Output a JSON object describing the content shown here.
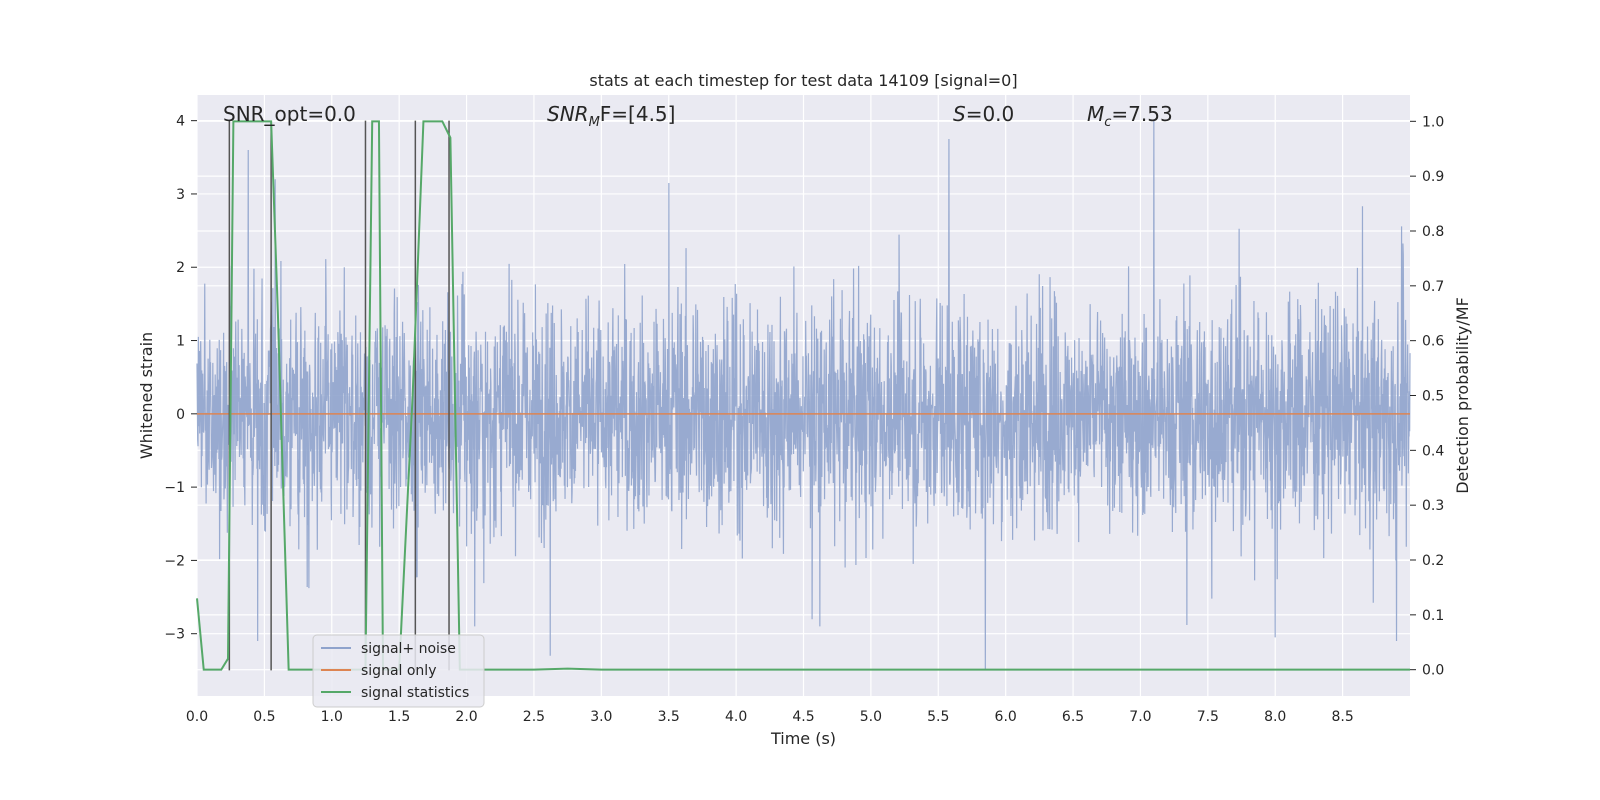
{
  "chart_data": {
    "type": "line",
    "title": "stats at each timestep for test data 14109 [signal=0]",
    "xlabel": "Time (s)",
    "ylabel": "Whitened strain",
    "y2label": "Detection probability/MF",
    "xlim": [
      0,
      9.0
    ],
    "ylim": [
      -3.85,
      4.35
    ],
    "y2lim": [
      -0.048,
      1.048
    ],
    "x_ticks": [
      "0.0",
      "0.5",
      "1.0",
      "1.5",
      "2.0",
      "2.5",
      "3.0",
      "3.5",
      "4.0",
      "4.5",
      "5.0",
      "5.5",
      "6.0",
      "6.5",
      "7.0",
      "7.5",
      "8.0",
      "8.5"
    ],
    "y_ticks": [
      "4",
      "3",
      "2",
      "1",
      "0",
      "−1",
      "−2",
      "−3"
    ],
    "y2_ticks": [
      "1.0",
      "0.9",
      "0.8",
      "0.7",
      "0.6",
      "0.5",
      "0.4",
      "0.3",
      "0.2",
      "0.1",
      "0.0"
    ],
    "grid": true,
    "legend_placement": "lower-left",
    "annotations": {
      "snr_opt": "SNR_opt=0.0",
      "snr_mf_base": "SNR",
      "snr_mf_sub": "M",
      "snr_mf_rest": "F=[4.5]",
      "s_italic": "S",
      "s_rest": "=0.0",
      "mc_base": "M",
      "mc_sub": "c",
      "mc_rest": "=7.53"
    },
    "series": [
      {
        "name": "signal+ noise",
        "color": "#8fa3cc",
        "axis": "left",
        "noise_envelope": {
          "x_range": [
            0,
            9.0
          ],
          "typical_abs_max": 2.2,
          "extremes": [
            {
              "x": 5.58,
              "y": 3.75
            },
            {
              "x": 7.1,
              "y": 4.0
            },
            {
              "x": 3.5,
              "y": 3.15
            },
            {
              "x": 0.58,
              "y": 3.2
            },
            {
              "x": 0.38,
              "y": 3.6
            },
            {
              "x": 5.85,
              "y": -3.5
            },
            {
              "x": 0.45,
              "y": -3.1
            },
            {
              "x": 2.62,
              "y": -3.3
            },
            {
              "x": 8.0,
              "y": -3.05
            },
            {
              "x": 8.9,
              "y": -3.1
            }
          ]
        }
      },
      {
        "name": "signal only",
        "color": "#dd8452",
        "axis": "left",
        "x": [
          0,
          9.0
        ],
        "y": [
          0,
          0
        ]
      },
      {
        "name": "signal statistics",
        "color": "#55a868",
        "axis": "right",
        "x": [
          0.0,
          0.05,
          0.18,
          0.23,
          0.27,
          0.3,
          0.35,
          0.55,
          0.6,
          0.68,
          0.8,
          1.2,
          1.25,
          1.3,
          1.35,
          1.38,
          1.45,
          1.5,
          1.6,
          1.68,
          1.82,
          1.88,
          1.95,
          2.05,
          2.5,
          2.75,
          3.0,
          9.0
        ],
        "y": [
          0.13,
          0.0,
          0.0,
          0.02,
          1.0,
          1.0,
          1.0,
          1.0,
          0.65,
          0.0,
          0.0,
          0.0,
          0.0,
          1.0,
          1.0,
          0.0,
          0.0,
          0.0,
          0.5,
          1.0,
          1.0,
          0.97,
          0.0,
          0.0,
          0.0,
          0.002,
          0.0,
          0.0
        ]
      }
    ],
    "vertical_markers": {
      "color": "#555555",
      "x": [
        0.24,
        0.55,
        1.25,
        1.62,
        1.87
      ],
      "y_top": 4.0,
      "y_bottom": -3.5
    }
  }
}
